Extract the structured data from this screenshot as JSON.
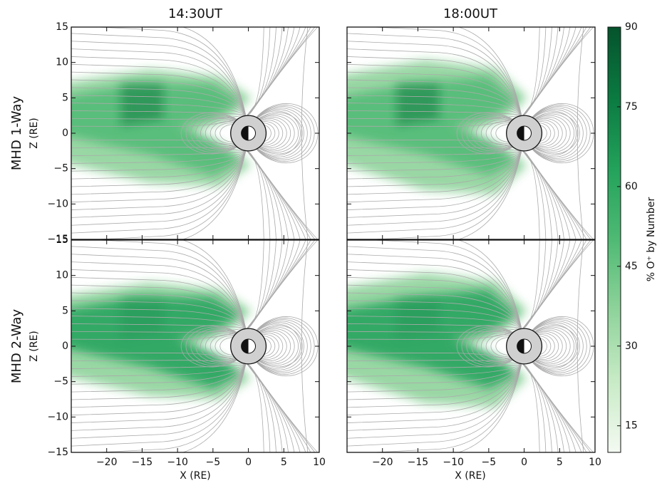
{
  "chart_data": {
    "type": "contour",
    "columns": [
      "14:30UT",
      "18:00UT"
    ],
    "rows": [
      "MHD 1-Way",
      "MHD 2-Way"
    ],
    "x_label": "X (RE)",
    "y_label": "Z (RE)",
    "xlim": [
      -25,
      10
    ],
    "xticks": [
      {
        "value": -20,
        "label": "−20"
      },
      {
        "value": -15,
        "label": "−15"
      },
      {
        "value": -10,
        "label": "−10"
      },
      {
        "value": -5,
        "label": "−5"
      },
      0,
      5,
      10
    ],
    "ylim": [
      -15,
      15
    ],
    "yticks": [
      15,
      10,
      5,
      0,
      {
        "value": -5,
        "label": "−5"
      },
      {
        "value": -10,
        "label": "−10"
      },
      {
        "value": -15,
        "label": "−15"
      }
    ],
    "colorbar": {
      "label": "% O⁺ by Number",
      "lim": [
        10,
        90
      ],
      "ticks": [
        15,
        30,
        45,
        60,
        75,
        90
      ],
      "colors": [
        "#f4faf2",
        "#c8ebc6",
        "#8fd39b",
        "#4fba74",
        "#23a25b",
        "#0b7a41",
        "#05532c"
      ]
    }
  }
}
